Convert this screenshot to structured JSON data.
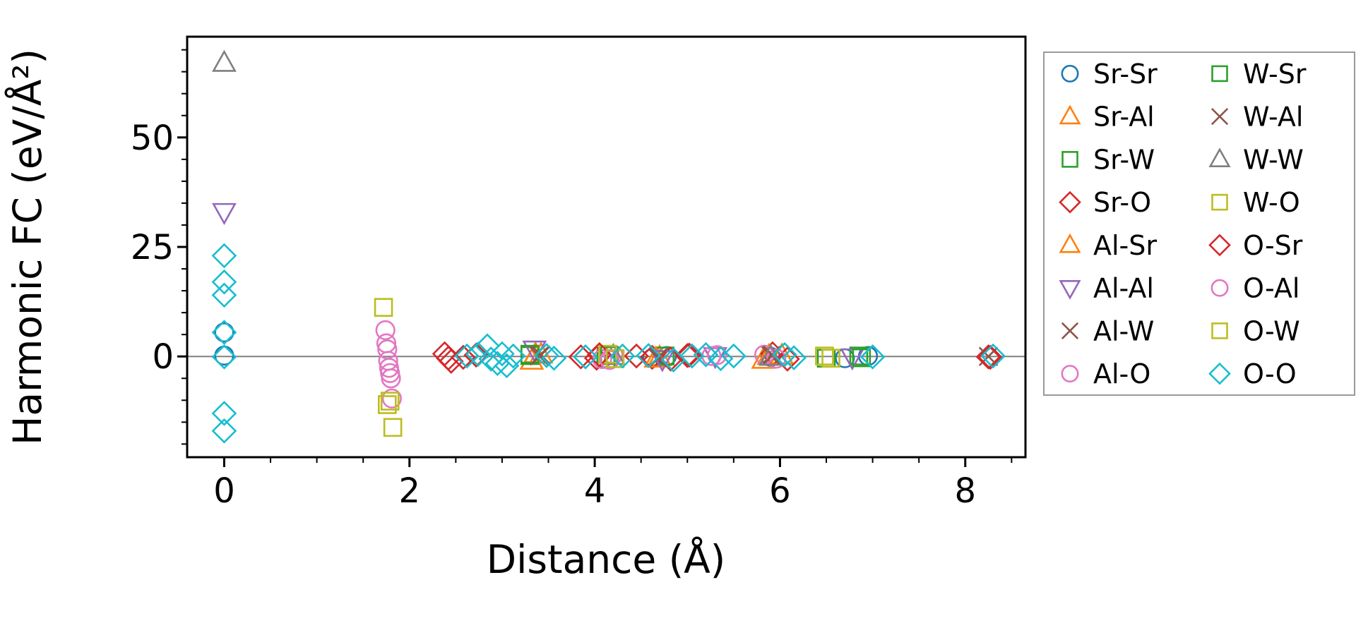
{
  "figure": {
    "background": "#ffffff"
  },
  "chart_data": {
    "type": "scatter",
    "title": "",
    "xlabel": "Distance (Å)",
    "ylabel": "Harmonic FC (eV/Å²)",
    "xlim": [
      -0.4,
      8.65
    ],
    "ylim": [
      -23,
      73
    ],
    "xticks": [
      0,
      2,
      4,
      6,
      8
    ],
    "yticks": [
      0,
      25,
      50
    ],
    "x_minor_step": 0.5,
    "y_minor_step": 5,
    "grid": false,
    "zero_line": {
      "y": 0,
      "color": "#808080",
      "width": 2
    },
    "axis_color": "#000000",
    "legend": {
      "position": "right",
      "columns": 2,
      "border_color": "#999999",
      "fill": "#ffffff"
    },
    "series": [
      {
        "name": "Sr-Sr",
        "marker": "circle",
        "color": "#1f77b4",
        "points": [
          [
            0,
            5.5
          ],
          [
            0,
            0.2
          ],
          [
            4.62,
            -0.4
          ],
          [
            4.78,
            0.1
          ],
          [
            5.9,
            -0.1
          ],
          [
            6.7,
            -0.4
          ],
          [
            6.95,
            0.1
          ]
        ]
      },
      {
        "name": "Sr-Al",
        "marker": "triangle-up",
        "color": "#ff7f0e",
        "points": [
          [
            3.32,
            -1.0
          ],
          [
            3.42,
            0.4
          ],
          [
            4.7,
            -0.2
          ],
          [
            5.82,
            -0.8
          ],
          [
            6.02,
            0.2
          ]
        ]
      },
      {
        "name": "Sr-W",
        "marker": "square",
        "color": "#2ca02c",
        "points": [
          [
            3.3,
            0.2
          ],
          [
            4.12,
            -0.5
          ],
          [
            4.76,
            0.1
          ],
          [
            6.5,
            -0.4
          ],
          [
            6.85,
            0.1
          ]
        ]
      },
      {
        "name": "Sr-O",
        "marker": "diamond",
        "color": "#d62728",
        "points": [
          [
            2.38,
            0.6
          ],
          [
            2.45,
            -1.1
          ],
          [
            2.58,
            -0.2
          ],
          [
            2.72,
            0.3
          ],
          [
            3.85,
            -0.1
          ],
          [
            4.02,
            -0.4
          ],
          [
            4.45,
            0.1
          ],
          [
            4.62,
            -0.2
          ],
          [
            4.82,
            -0.6
          ],
          [
            5.0,
            0.2
          ],
          [
            5.92,
            0.6
          ],
          [
            6.08,
            -0.6
          ],
          [
            8.25,
            -0.1
          ]
        ]
      },
      {
        "name": "Al-Sr",
        "marker": "triangle-up",
        "color": "#ff7f0e",
        "points": [
          [
            3.36,
            0.5
          ],
          [
            4.66,
            -0.5
          ],
          [
            5.88,
            0.1
          ]
        ]
      },
      {
        "name": "Al-Al",
        "marker": "triangle-down",
        "color": "#9467bd",
        "points": [
          [
            0,
            33
          ],
          [
            3.35,
            1.6
          ],
          [
            4.73,
            -0.6
          ],
          [
            5.3,
            0.1
          ],
          [
            6.78,
            -0.2
          ]
        ]
      },
      {
        "name": "Al-W",
        "marker": "x",
        "color": "#8c564b",
        "points": [
          [
            3.4,
            0.1
          ],
          [
            4.7,
            -0.1
          ],
          [
            5.9,
            0.2
          ],
          [
            8.25,
            0
          ]
        ]
      },
      {
        "name": "Al-O",
        "marker": "circle",
        "color": "#e377c2",
        "points": [
          [
            1.74,
            6.0
          ],
          [
            1.76,
            1.6
          ],
          [
            1.77,
            -1.0
          ],
          [
            1.78,
            -2.6
          ],
          [
            1.8,
            -5.0
          ],
          [
            1.81,
            -9.6
          ],
          [
            4.08,
            -0.6
          ],
          [
            4.2,
            0.4
          ],
          [
            5.26,
            0.1
          ],
          [
            5.83,
            0.4
          ],
          [
            5.96,
            -0.5
          ]
        ]
      },
      {
        "name": "W-Sr",
        "marker": "square",
        "color": "#2ca02c",
        "points": [
          [
            3.3,
            0.5
          ],
          [
            4.16,
            0.2
          ],
          [
            6.88,
            -0.3
          ]
        ]
      },
      {
        "name": "W-Al",
        "marker": "x",
        "color": "#8c564b",
        "points": [
          [
            3.42,
            0.3
          ],
          [
            4.68,
            -0.3
          ],
          [
            5.92,
            0.3
          ]
        ]
      },
      {
        "name": "W-W",
        "marker": "triangle-up",
        "color": "#7f7f7f",
        "points": [
          [
            0,
            67
          ],
          [
            4.2,
            0.1
          ],
          [
            5.9,
            -0.1
          ]
        ]
      },
      {
        "name": "W-O",
        "marker": "square",
        "color": "#bcbd22",
        "points": [
          [
            1.72,
            11.2
          ],
          [
            1.79,
            -10.2
          ],
          [
            1.82,
            -16.2
          ],
          [
            4.14,
            0.5
          ],
          [
            6.48,
            0.1
          ]
        ]
      },
      {
        "name": "O-Sr",
        "marker": "diamond",
        "color": "#d62728",
        "points": [
          [
            2.42,
            -0.4
          ],
          [
            4.05,
            0.4
          ],
          [
            5.02,
            0.3
          ],
          [
            8.27,
            -0.2
          ]
        ]
      },
      {
        "name": "O-Al",
        "marker": "circle",
        "color": "#e377c2",
        "points": [
          [
            1.75,
            3.0
          ],
          [
            1.79,
            -3.8
          ],
          [
            4.16,
            -0.8
          ],
          [
            5.32,
            0.3
          ]
        ]
      },
      {
        "name": "O-W",
        "marker": "square",
        "color": "#bcbd22",
        "points": [
          [
            1.76,
            -11.0
          ],
          [
            4.22,
            -0.5
          ],
          [
            6.55,
            -0.4
          ]
        ]
      },
      {
        "name": "O-O",
        "marker": "diamond",
        "color": "#17becf",
        "points": [
          [
            0,
            23
          ],
          [
            0,
            17
          ],
          [
            0,
            14
          ],
          [
            0,
            5.5
          ],
          [
            0,
            -0.1
          ],
          [
            0,
            -13
          ],
          [
            0,
            -17
          ],
          [
            2.62,
            0.1
          ],
          [
            2.74,
            0.5
          ],
          [
            2.84,
            2.4
          ],
          [
            2.88,
            -0.6
          ],
          [
            2.95,
            -1.6
          ],
          [
            3.0,
            0.6
          ],
          [
            3.05,
            -2.1
          ],
          [
            3.12,
            0.1
          ],
          [
            3.48,
            0.2
          ],
          [
            3.56,
            -0.4
          ],
          [
            3.9,
            -0.1
          ],
          [
            4.3,
            0.1
          ],
          [
            4.58,
            0.2
          ],
          [
            4.85,
            -0.8
          ],
          [
            5.05,
            0.1
          ],
          [
            5.2,
            0.4
          ],
          [
            5.36,
            -0.5
          ],
          [
            5.5,
            0.1
          ],
          [
            6.05,
            0.4
          ],
          [
            6.15,
            -0.3
          ],
          [
            7.0,
            -0.1
          ],
          [
            8.3,
            0.1
          ]
        ]
      }
    ]
  }
}
